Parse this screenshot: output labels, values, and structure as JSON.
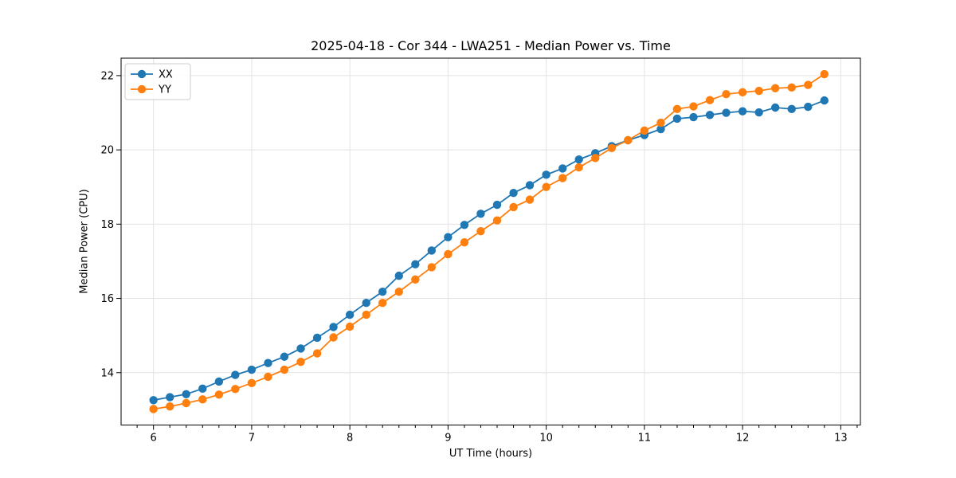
{
  "chart_data": {
    "type": "line",
    "title": "2025-04-18 - Cor 344 - LWA251 - Median Power vs. Time",
    "xlabel": "UT Time (hours)",
    "ylabel": "Median Power (CPU)",
    "grid": true,
    "legend_position": "upper-left",
    "xlim": [
      5.67,
      13.2
    ],
    "ylim": [
      12.59,
      22.47
    ],
    "x_ticks": [
      6,
      7,
      8,
      9,
      10,
      11,
      12,
      13
    ],
    "y_ticks": [
      14,
      16,
      18,
      20,
      22
    ],
    "x_minor_tick_step": 0.1667,
    "x": [
      6.0,
      6.167,
      6.333,
      6.5,
      6.667,
      6.833,
      7.0,
      7.167,
      7.333,
      7.5,
      7.667,
      7.833,
      8.0,
      8.167,
      8.333,
      8.5,
      8.667,
      8.833,
      9.0,
      9.167,
      9.333,
      9.5,
      9.667,
      9.833,
      10.0,
      10.167,
      10.333,
      10.5,
      10.667,
      10.833,
      11.0,
      11.167,
      11.333,
      11.5,
      11.667,
      11.833,
      12.0,
      12.167,
      12.333,
      12.5,
      12.667,
      12.833
    ],
    "series": [
      {
        "name": "XX",
        "color": "#1f77b4",
        "marker": "circle",
        "values": [
          13.26,
          13.34,
          13.42,
          13.57,
          13.76,
          13.94,
          14.08,
          14.26,
          14.43,
          14.65,
          14.94,
          15.23,
          15.56,
          15.88,
          16.18,
          16.61,
          16.92,
          17.29,
          17.65,
          17.98,
          18.28,
          18.52,
          18.84,
          19.05,
          19.33,
          19.5,
          19.74,
          19.91,
          20.1,
          20.26,
          20.4,
          20.56,
          20.84,
          20.88,
          20.94,
          21.0,
          21.04,
          21.01,
          21.14,
          21.1,
          21.16,
          21.33
        ]
      },
      {
        "name": "YY",
        "color": "#ff7f0e",
        "marker": "circle",
        "values": [
          13.02,
          13.09,
          13.18,
          13.28,
          13.41,
          13.56,
          13.72,
          13.89,
          14.08,
          14.29,
          14.52,
          14.95,
          15.24,
          15.56,
          15.88,
          16.18,
          16.51,
          16.84,
          17.19,
          17.51,
          17.81,
          18.1,
          18.46,
          18.66,
          19.0,
          19.24,
          19.53,
          19.78,
          20.05,
          20.26,
          20.52,
          20.73,
          21.1,
          21.17,
          21.34,
          21.5,
          21.55,
          21.59,
          21.66,
          21.68,
          21.75,
          22.04
        ]
      }
    ]
  },
  "styles": {
    "background": "#ffffff",
    "grid_color": "#e3e3e3",
    "axis_color": "#000000",
    "series_blue": "#1f77b4",
    "series_orange": "#ff7f0e"
  }
}
